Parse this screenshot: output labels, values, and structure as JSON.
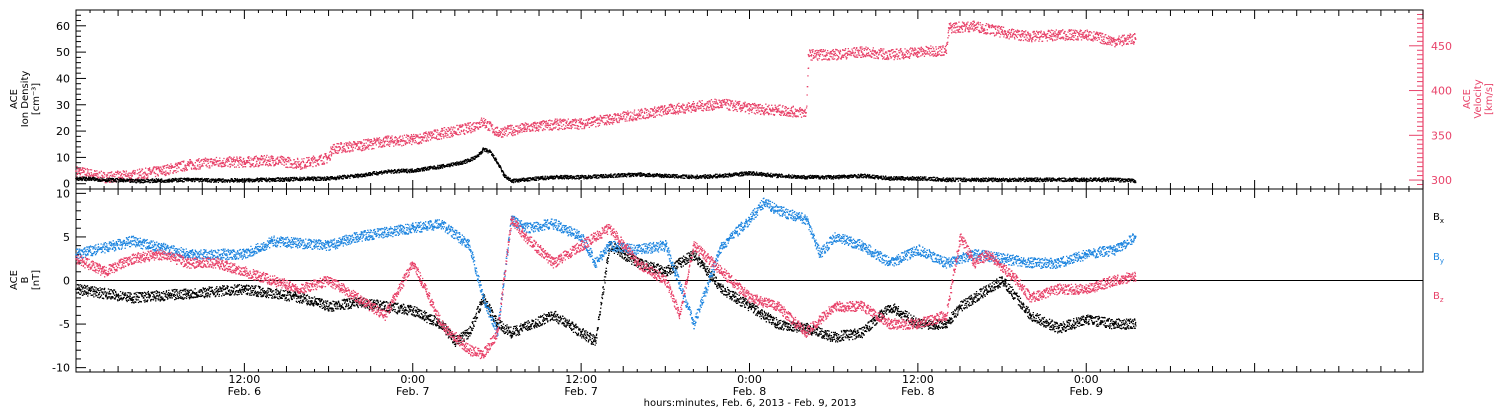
{
  "colors": {
    "black": "#000000",
    "pink": "#e8436a",
    "blue": "#1f86e0"
  },
  "footer": {
    "xlabel": "hours:minutes, Feb.  6, 2013 - Feb.  9, 2013"
  },
  "chart_data": [
    {
      "type": "scatter",
      "panel": "top",
      "ylabel_left": [
        "ACE",
        "Ion Density",
        "[cm⁻³]"
      ],
      "ylabel_right": [
        "ACE",
        "Velocity",
        "[km/s]"
      ],
      "xlim": [
        0,
        96
      ],
      "x_ticks": [
        {
          "x": 12,
          "label": "12:00",
          "sub": "Feb. 6"
        },
        {
          "x": 24,
          "label": "0:00",
          "sub": "Feb. 7"
        },
        {
          "x": 36,
          "label": "12:00",
          "sub": "Feb. 7"
        },
        {
          "x": 48,
          "label": "0:00",
          "sub": "Feb. 8"
        },
        {
          "x": 60,
          "label": "12:00",
          "sub": "Feb. 8"
        },
        {
          "x": 72,
          "label": "0:00",
          "sub": "Feb. 9"
        }
      ],
      "ylim_left": [
        -2,
        66
      ],
      "yticks_left": [
        0,
        10,
        20,
        30,
        40,
        50,
        60
      ],
      "ylim_right": [
        290,
        490
      ],
      "yticks_right": [
        300,
        350,
        400,
        450
      ],
      "series": [
        {
          "name": "Ion Density",
          "axis": "left",
          "color": "#000000",
          "points": [
            [
              0,
              2
            ],
            [
              2,
              1.5
            ],
            [
              4,
              1
            ],
            [
              6,
              1.2
            ],
            [
              8,
              1.5
            ],
            [
              10,
              1.2
            ],
            [
              12,
              1.3
            ],
            [
              14,
              1.5
            ],
            [
              16,
              1.8
            ],
            [
              18,
              2
            ],
            [
              20,
              3
            ],
            [
              22,
              4.5
            ],
            [
              24,
              5
            ],
            [
              26,
              6.5
            ],
            [
              27.5,
              8
            ],
            [
              28.5,
              10
            ],
            [
              29,
              13
            ],
            [
              29.5,
              12
            ],
            [
              30,
              8
            ],
            [
              30.5,
              3
            ],
            [
              31,
              1
            ],
            [
              32,
              1.5
            ],
            [
              34,
              2.5
            ],
            [
              36,
              2.5
            ],
            [
              38,
              3
            ],
            [
              40,
              3.5
            ],
            [
              42,
              3
            ],
            [
              44,
              2.5
            ],
            [
              46,
              3
            ],
            [
              48,
              4
            ],
            [
              50,
              3
            ],
            [
              52,
              2.5
            ],
            [
              54,
              2.5
            ],
            [
              56,
              3
            ],
            [
              58,
              2
            ],
            [
              60,
              2
            ],
            [
              62,
              1.5
            ],
            [
              64,
              1.5
            ],
            [
              66,
              1.5
            ],
            [
              68,
              1.5
            ],
            [
              70,
              1.5
            ],
            [
              72,
              1.5
            ],
            [
              73,
              1.5
            ],
            [
              74,
              1.5
            ],
            [
              75.5,
              1
            ]
          ]
        },
        {
          "name": "Velocity",
          "axis": "right",
          "color": "#e8436a",
          "points": [
            [
              0,
              310
            ],
            [
              2,
              303
            ],
            [
              4,
              305
            ],
            [
              6,
              310
            ],
            [
              8,
              317
            ],
            [
              10,
              320
            ],
            [
              12,
              320
            ],
            [
              14,
              322
            ],
            [
              16,
              318
            ],
            [
              18,
              325
            ],
            [
              18.2,
              335
            ],
            [
              20,
              338
            ],
            [
              22,
              343
            ],
            [
              24,
              345
            ],
            [
              26,
              352
            ],
            [
              28,
              358
            ],
            [
              29,
              365
            ],
            [
              30,
              353
            ],
            [
              32,
              358
            ],
            [
              34,
              362
            ],
            [
              36,
              363
            ],
            [
              38,
              368
            ],
            [
              40,
              373
            ],
            [
              42,
              378
            ],
            [
              44,
              382
            ],
            [
              46,
              385
            ],
            [
              48,
              380
            ],
            [
              50,
              378
            ],
            [
              52,
              375
            ],
            [
              52.2,
              440
            ],
            [
              54,
              440
            ],
            [
              56,
              443
            ],
            [
              58,
              440
            ],
            [
              60,
              443
            ],
            [
              62,
              445
            ],
            [
              62.2,
              470
            ],
            [
              64,
              472
            ],
            [
              66,
              465
            ],
            [
              68,
              460
            ],
            [
              70,
              462
            ],
            [
              72,
              462
            ],
            [
              74,
              455
            ],
            [
              75.5,
              458
            ]
          ]
        }
      ]
    },
    {
      "type": "scatter",
      "panel": "bottom",
      "ylabel_left": [
        "ACE",
        "B",
        "[nT]"
      ],
      "xlim": [
        0,
        96
      ],
      "ylim": [
        -10.5,
        10.5
      ],
      "yticks": [
        -10,
        -5,
        0,
        5,
        10
      ],
      "series": [
        {
          "name": "Bx",
          "color": "#000000",
          "points": [
            [
              0,
              -1
            ],
            [
              4,
              -2
            ],
            [
              8,
              -1.5
            ],
            [
              12,
              -1
            ],
            [
              16,
              -2
            ],
            [
              18,
              -3
            ],
            [
              20,
              -2.5
            ],
            [
              22,
              -3
            ],
            [
              24,
              -3.5
            ],
            [
              26,
              -5
            ],
            [
              27,
              -7
            ],
            [
              28,
              -6
            ],
            [
              29,
              -2
            ],
            [
              30,
              -5
            ],
            [
              31,
              -6
            ],
            [
              34,
              -4
            ],
            [
              36,
              -6
            ],
            [
              37,
              -7
            ],
            [
              38,
              4
            ],
            [
              40,
              2
            ],
            [
              42,
              1
            ],
            [
              44,
              3
            ],
            [
              46,
              -1
            ],
            [
              48,
              -3
            ],
            [
              50,
              -5
            ],
            [
              52,
              -5.5
            ],
            [
              54,
              -6.5
            ],
            [
              56,
              -6
            ],
            [
              58,
              -3
            ],
            [
              60,
              -5
            ],
            [
              62,
              -5
            ],
            [
              63,
              -3
            ],
            [
              64,
              -2
            ],
            [
              66,
              0
            ],
            [
              68,
              -4
            ],
            [
              70,
              -5.5
            ],
            [
              72,
              -4.5
            ],
            [
              74,
              -5
            ],
            [
              75.5,
              -5
            ]
          ]
        },
        {
          "name": "By",
          "color": "#1f86e0",
          "points": [
            [
              0,
              3
            ],
            [
              4,
              4.5
            ],
            [
              8,
              3
            ],
            [
              12,
              3
            ],
            [
              14,
              4.5
            ],
            [
              18,
              4
            ],
            [
              20,
              5
            ],
            [
              22,
              5.5
            ],
            [
              24,
              6
            ],
            [
              26,
              6.5
            ],
            [
              28,
              4
            ],
            [
              29,
              -2
            ],
            [
              30,
              -6
            ],
            [
              31,
              7
            ],
            [
              32,
              6
            ],
            [
              34,
              6.5
            ],
            [
              36,
              5
            ],
            [
              37,
              2
            ],
            [
              38,
              4
            ],
            [
              40,
              3.5
            ],
            [
              42,
              4
            ],
            [
              44,
              -5
            ],
            [
              46,
              4
            ],
            [
              48,
              7
            ],
            [
              49,
              9
            ],
            [
              50,
              8
            ],
            [
              52,
              7
            ],
            [
              53,
              3
            ],
            [
              54,
              5
            ],
            [
              56,
              4
            ],
            [
              58,
              2
            ],
            [
              60,
              3.5
            ],
            [
              62,
              2
            ],
            [
              64,
              3
            ],
            [
              66,
              2.5
            ],
            [
              68,
              2
            ],
            [
              70,
              2
            ],
            [
              72,
              3
            ],
            [
              74,
              3.5
            ],
            [
              75.5,
              5
            ]
          ]
        },
        {
          "name": "Bz",
          "color": "#e8436a",
          "points": [
            [
              0,
              2.5
            ],
            [
              2,
              1
            ],
            [
              4,
              2.5
            ],
            [
              6,
              3
            ],
            [
              8,
              2
            ],
            [
              10,
              2
            ],
            [
              12,
              1
            ],
            [
              14,
              0
            ],
            [
              16,
              -1
            ],
            [
              18,
              0
            ],
            [
              20,
              -2
            ],
            [
              22,
              -4
            ],
            [
              24,
              2
            ],
            [
              26,
              -5
            ],
            [
              28,
              -8
            ],
            [
              29,
              -8.5
            ],
            [
              30,
              -6
            ],
            [
              31,
              7
            ],
            [
              32,
              5
            ],
            [
              34,
              2
            ],
            [
              36,
              4
            ],
            [
              38,
              6
            ],
            [
              40,
              2
            ],
            [
              42,
              0
            ],
            [
              43,
              -4
            ],
            [
              44,
              4
            ],
            [
              46,
              1
            ],
            [
              48,
              -2
            ],
            [
              50,
              -3
            ],
            [
              52,
              -6
            ],
            [
              54,
              -3
            ],
            [
              56,
              -3
            ],
            [
              58,
              -5
            ],
            [
              60,
              -5
            ],
            [
              62,
              -4
            ],
            [
              63,
              5
            ],
            [
              64,
              2
            ],
            [
              65,
              3
            ],
            [
              67,
              0
            ],
            [
              68,
              -2
            ],
            [
              70,
              -1
            ],
            [
              72,
              -1
            ],
            [
              74,
              0
            ],
            [
              75.5,
              0.5
            ]
          ]
        }
      ],
      "legend": [
        {
          "base": "B",
          "sub": "x",
          "color": "#000000"
        },
        {
          "base": "B",
          "sub": "y",
          "color": "#1f86e0"
        },
        {
          "base": "B",
          "sub": "z",
          "color": "#e8436a"
        }
      ]
    }
  ]
}
